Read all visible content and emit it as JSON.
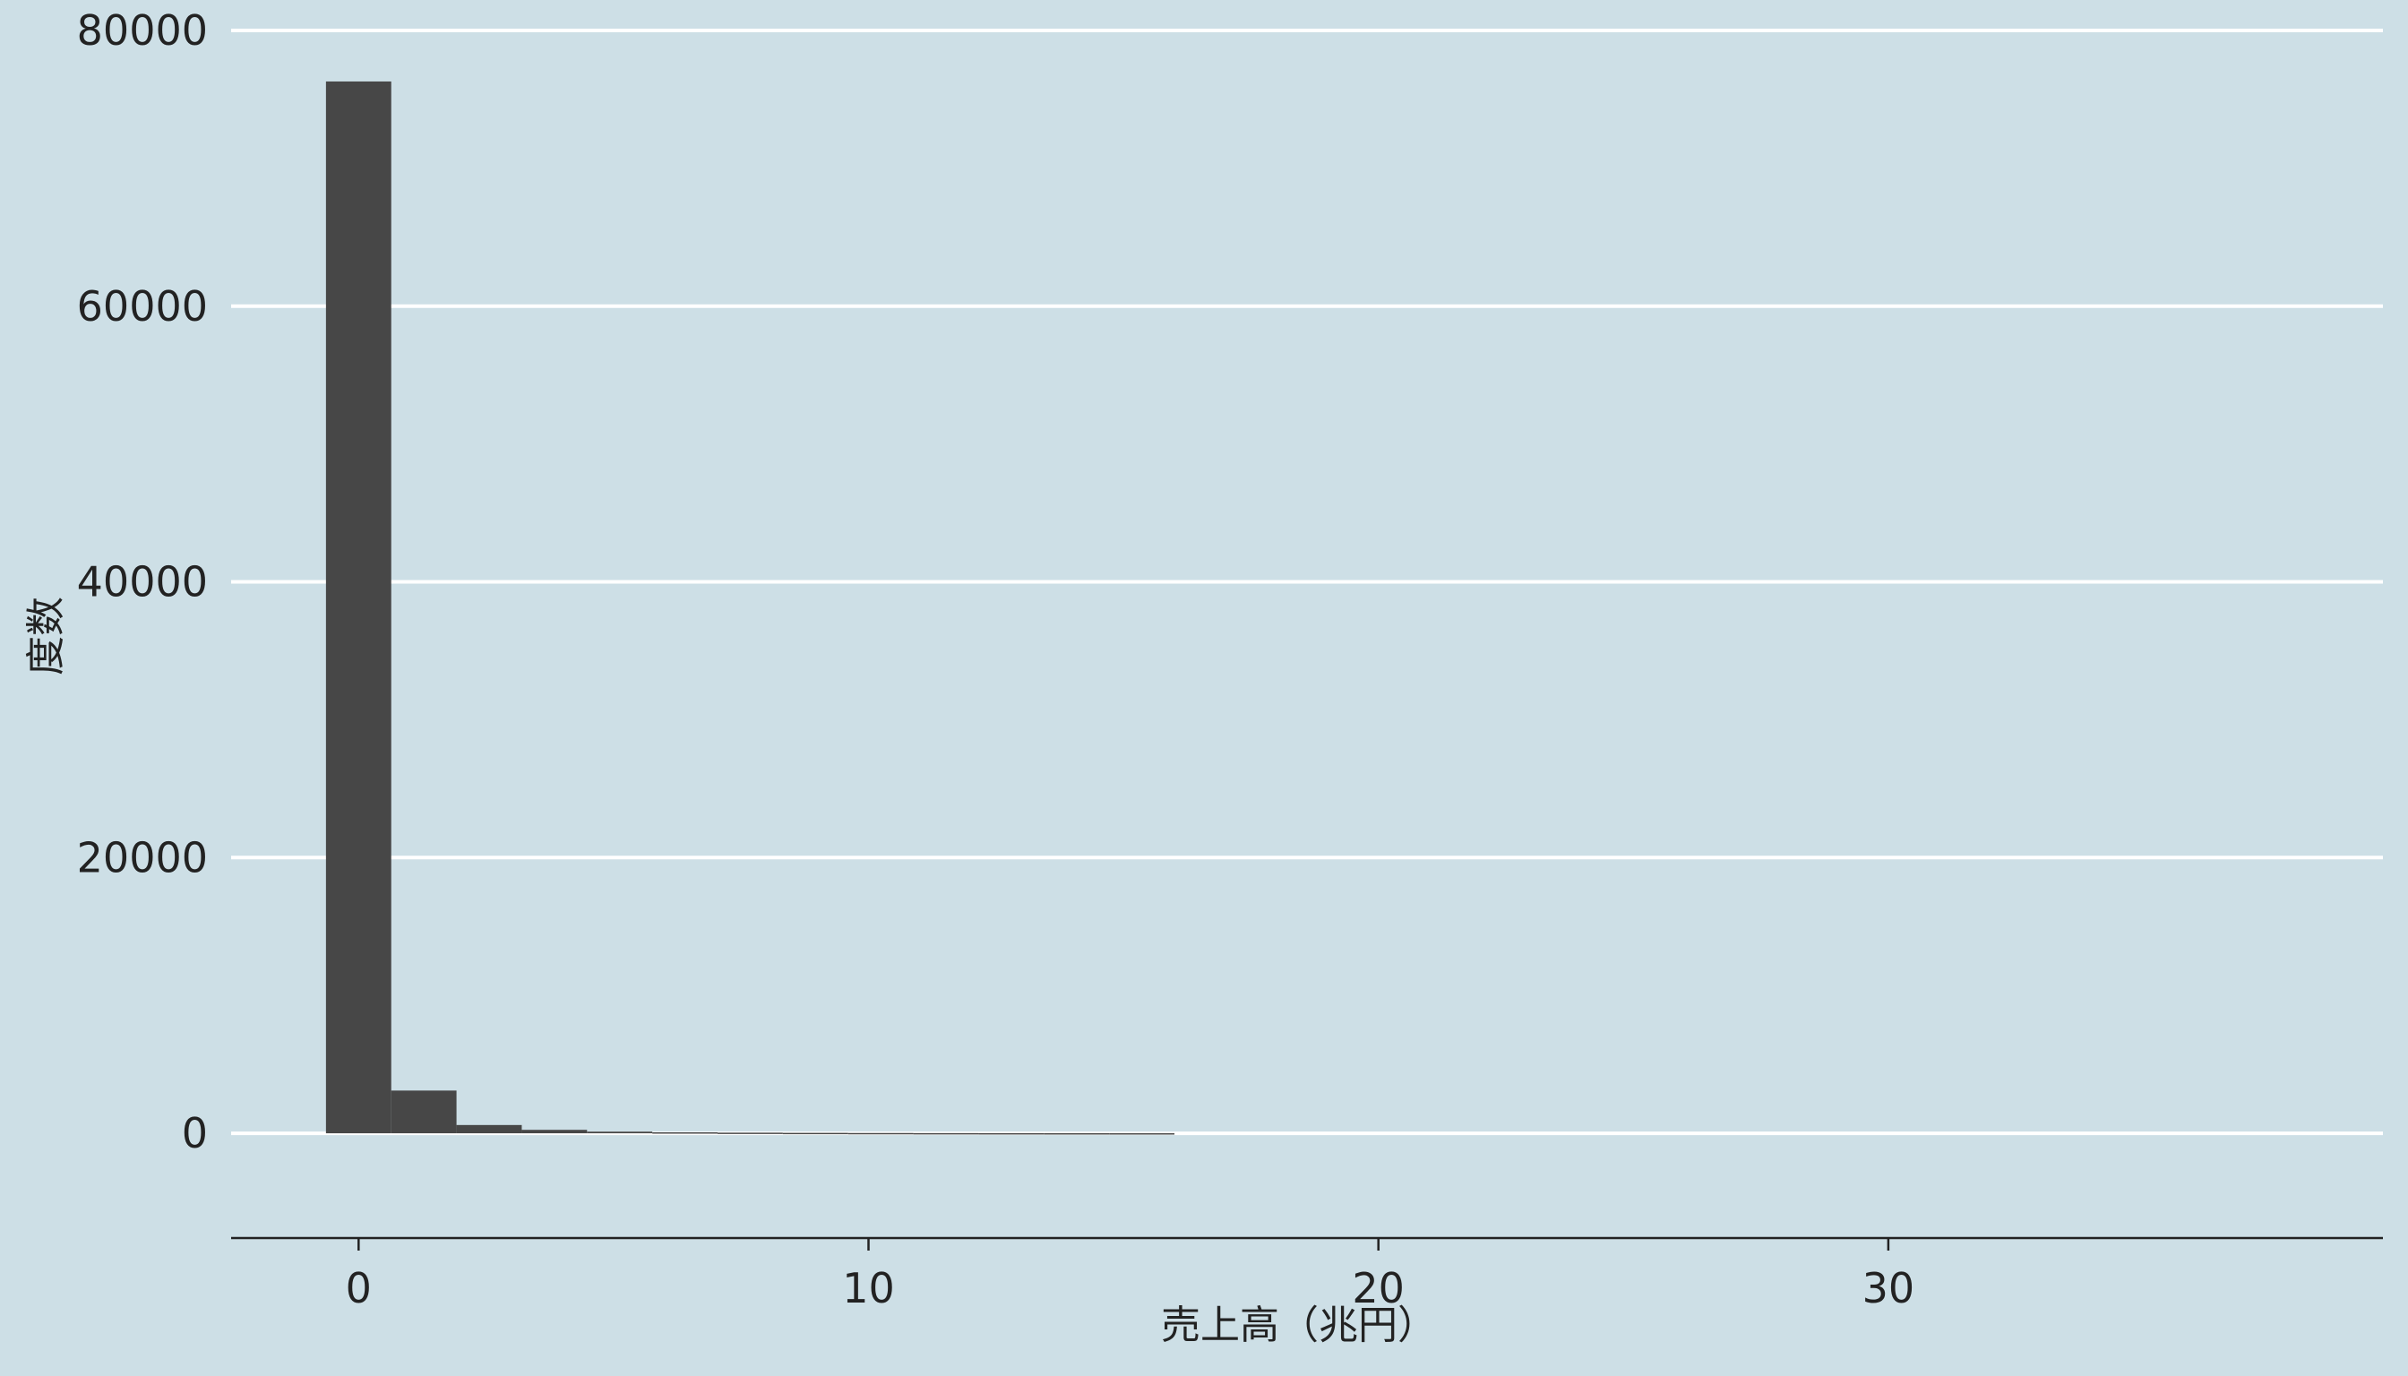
{
  "chart_data": {
    "type": "bar",
    "title": "",
    "xlabel": "売上高（兆円）",
    "ylabel": "度数",
    "xlim": [
      -2.5,
      39.7
    ],
    "ylim": [
      -3700,
      80000
    ],
    "x_ticks": [
      0,
      10,
      20,
      30
    ],
    "y_ticks": [
      0,
      20000,
      40000,
      60000,
      80000
    ],
    "grid": "horizontal",
    "legend": "none",
    "bin_width": 1.28,
    "bins": [
      {
        "x_start": -0.64,
        "count": 76300
      },
      {
        "x_start": 0.64,
        "count": 3100
      },
      {
        "x_start": 1.92,
        "count": 600
      },
      {
        "x_start": 3.2,
        "count": 250
      },
      {
        "x_start": 4.48,
        "count": 120
      },
      {
        "x_start": 5.76,
        "count": 70
      },
      {
        "x_start": 7.04,
        "count": 45
      },
      {
        "x_start": 8.32,
        "count": 30
      },
      {
        "x_start": 9.6,
        "count": 20
      },
      {
        "x_start": 10.88,
        "count": 12
      },
      {
        "x_start": 12.16,
        "count": 8
      },
      {
        "x_start": 13.44,
        "count": 5
      },
      {
        "x_start": 14.72,
        "count": 3
      }
    ],
    "colors": {
      "background": "#cddfe6",
      "bar": "#474747",
      "grid": "#ffffff",
      "axis": "#222222"
    }
  }
}
